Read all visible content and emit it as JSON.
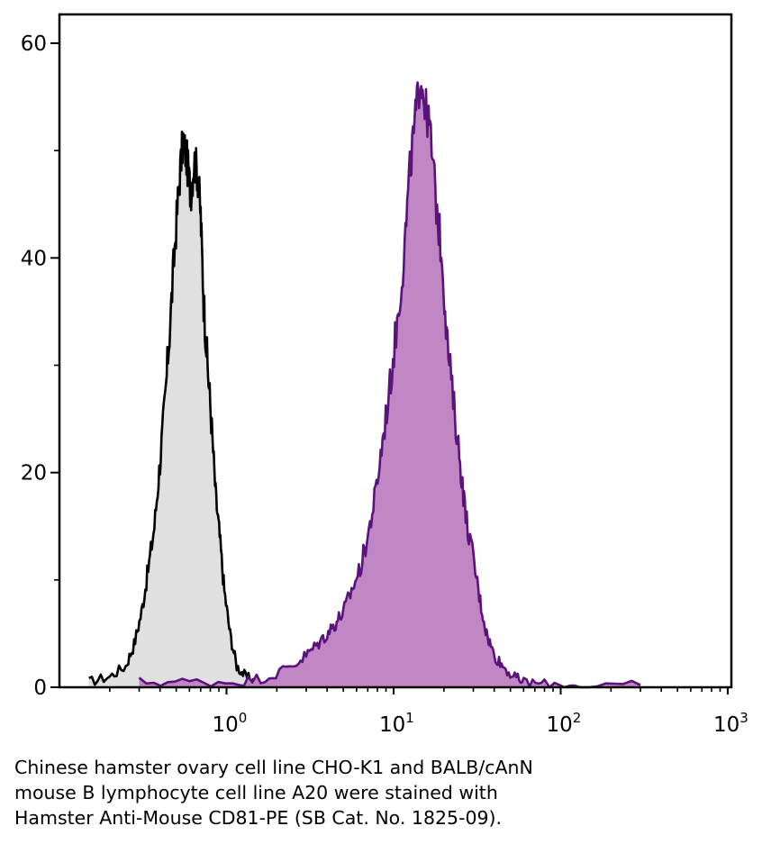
{
  "chart_data": {
    "type": "area",
    "x_scale": "log",
    "xlim": [
      0.1,
      1000
    ],
    "ylim": [
      0,
      63
    ],
    "x_ticks": [
      {
        "value": 1,
        "base": "10",
        "exp": "0"
      },
      {
        "value": 10,
        "base": "10",
        "exp": "1"
      },
      {
        "value": 100,
        "base": "10",
        "exp": "2"
      },
      {
        "value": 1000,
        "base": "10",
        "exp": "3"
      }
    ],
    "y_ticks": [
      {
        "value": 0,
        "label": "0"
      },
      {
        "value": 20,
        "label": "20"
      },
      {
        "value": 40,
        "label": "40"
      },
      {
        "value": 60,
        "label": "60"
      }
    ],
    "y_minor_ticks": [
      10,
      30,
      50
    ],
    "grid": false,
    "series": [
      {
        "color": "#000000",
        "fill": "#e0e0e0",
        "x": [
          0.15,
          0.2,
          0.25,
          0.28,
          0.31,
          0.34,
          0.37,
          0.4,
          0.43,
          0.46,
          0.49,
          0.52,
          0.55,
          0.58,
          0.61,
          0.64,
          0.67,
          0.7,
          0.73,
          0.77,
          0.81,
          0.86,
          0.91,
          0.97,
          1.05,
          1.15,
          1.3,
          1.5
        ],
        "y": [
          0.5,
          1,
          2,
          4,
          7,
          11,
          15,
          21,
          27,
          34,
          41,
          47,
          51,
          49,
          46,
          49,
          48,
          44,
          36,
          30,
          25,
          18,
          14,
          9,
          5,
          2,
          1,
          0.5
        ]
      },
      {
        "color": "#5a137a",
        "fill": "#c187c4",
        "x": [
          0.3,
          0.6,
          1.2,
          1.8,
          2.5,
          3.0,
          3.5,
          4.0,
          4.5,
          5.0,
          5.6,
          6.3,
          7.0,
          7.8,
          8.6,
          9.5,
          10.5,
          11.5,
          12.5,
          13.5,
          14.5,
          15.5,
          16.5,
          18,
          19.5,
          21,
          23,
          25,
          27,
          30,
          33,
          36,
          40,
          45,
          52,
          60,
          80,
          130,
          300
        ],
        "y": [
          0.5,
          0.5,
          0.5,
          1,
          2,
          3,
          4,
          5,
          6,
          7,
          9,
          11,
          14,
          18,
          23,
          28,
          34,
          40,
          48,
          53,
          57,
          54,
          52,
          45,
          40,
          32,
          26,
          21,
          16,
          12,
          8,
          5,
          3,
          2,
          1,
          0.5,
          0.3,
          0.2,
          0.2
        ]
      }
    ]
  },
  "caption": [
    "Chinese hamster ovary cell line CHO-K1 and BALB/cAnN",
    "mouse B lymphocyte cell line A20 were stained with",
    "Hamster Anti-Mouse CD81-PE (SB Cat. No. 1825-09)."
  ]
}
